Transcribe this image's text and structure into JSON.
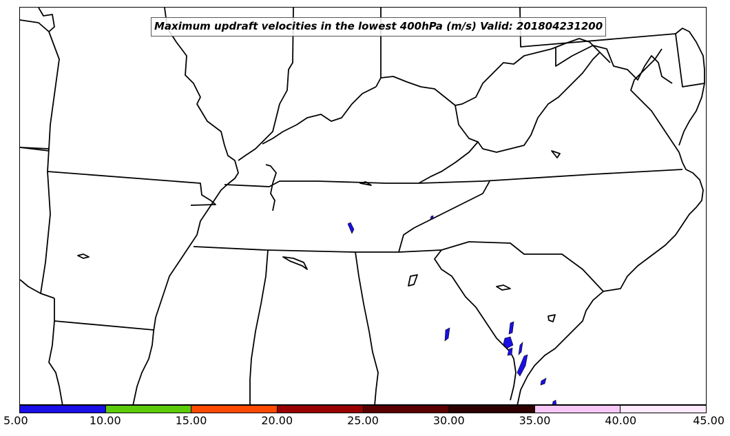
{
  "title": "Maximum updraft velocities in the lowest 400hPa (m/s) Valid: 201804231200",
  "colorbar": {
    "colors": [
      "#1a0fe6",
      "#5ccc0a",
      "#ff4a00",
      "#990000",
      "#5a0000",
      "#2e0000",
      "#f7c8f7",
      "#fde8fd"
    ],
    "tick_labels": [
      "5.00",
      "10.00",
      "15.00",
      "20.00",
      "25.00",
      "30.00",
      "35.00",
      "40.00",
      "45.00"
    ]
  },
  "colors": {
    "boundary": "#000000",
    "updraft": "#1a0fe6"
  }
}
